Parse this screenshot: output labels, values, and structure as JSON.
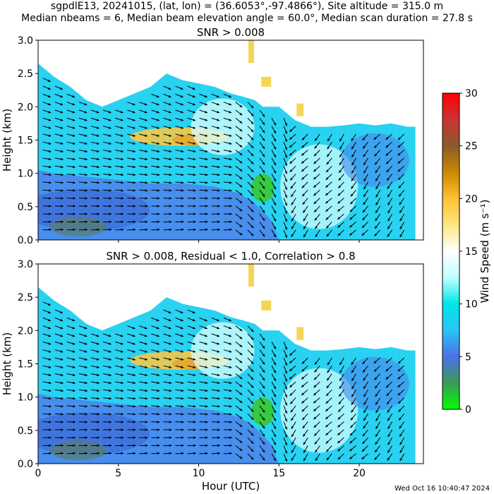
{
  "header": {
    "line1": "sgpdlE13, 20241015, (lat, lon) = (36.6053°,-97.4866°), Site altitude = 315.0 m",
    "line2": "Median nbeams = 6, Median beam elevation angle = 60.0°, Median scan duration = 27.8 s"
  },
  "footer": {
    "timestamp": "Wed Oct 16 10:40:47 2024"
  },
  "colorbar": {
    "label": "Wind Speed (m s⁻¹)",
    "min": 0,
    "max": 30,
    "ticks": [
      "0",
      "5",
      "10",
      "15",
      "20",
      "25",
      "30"
    ],
    "stops": [
      "#00ff00",
      "#3a9a58",
      "#4a72e8",
      "#29c5f6",
      "#00e6e6",
      "#bfffff",
      "#ffffff",
      "#ffe680",
      "#ffbf33",
      "#cc8800",
      "#8b5a2b",
      "#cc3333",
      "#ff0000"
    ]
  },
  "chart_data": [
    {
      "type": "heatmap",
      "title": "SNR > 0.008",
      "xlabel": "",
      "ylabel": "Height (km)",
      "xlim": [
        0,
        24
      ],
      "ylim": [
        0,
        3
      ],
      "xticks": [
        0,
        5,
        10,
        15,
        20
      ],
      "yticks": [
        "0.0",
        "0.5",
        "1.0",
        "1.5",
        "2.0",
        "2.5",
        "3.0"
      ],
      "top_profile_km": [
        [
          0,
          2.65
        ],
        [
          1,
          2.45
        ],
        [
          2,
          2.3
        ],
        [
          3,
          2.1
        ],
        [
          4,
          2.0
        ],
        [
          5,
          2.1
        ],
        [
          6,
          2.2
        ],
        [
          7,
          2.3
        ],
        [
          8,
          2.5
        ],
        [
          9,
          2.4
        ],
        [
          10,
          2.35
        ],
        [
          11,
          2.3
        ],
        [
          12,
          2.2
        ],
        [
          12.8,
          2.15
        ],
        [
          13.5,
          2.1
        ],
        [
          14,
          2.0
        ],
        [
          15,
          2.0
        ],
        [
          16,
          1.8
        ],
        [
          17,
          1.7
        ],
        [
          18,
          1.7
        ],
        [
          19,
          1.72
        ],
        [
          20,
          1.75
        ],
        [
          21,
          1.72
        ],
        [
          22,
          1.75
        ],
        [
          23,
          1.7
        ],
        [
          23.5,
          1.7
        ]
      ]
    },
    {
      "type": "heatmap",
      "title": "SNR > 0.008, Residual < 1.0, Correlation > 0.8",
      "xlabel": "Hour (UTC)",
      "ylabel": "Height (km)",
      "xlim": [
        0,
        24
      ],
      "ylim": [
        0,
        3
      ],
      "xticks": [
        0,
        5,
        10,
        15,
        20
      ],
      "yticks": [
        "0.0",
        "0.5",
        "1.0",
        "1.5",
        "2.0",
        "2.5",
        "3.0"
      ],
      "top_profile_km": [
        [
          0,
          2.65
        ],
        [
          1,
          2.45
        ],
        [
          2,
          2.3
        ],
        [
          3,
          2.1
        ],
        [
          4,
          2.0
        ],
        [
          5,
          2.1
        ],
        [
          6,
          2.2
        ],
        [
          7,
          2.3
        ],
        [
          8,
          2.5
        ],
        [
          9,
          2.4
        ],
        [
          10,
          2.35
        ],
        [
          11,
          2.3
        ],
        [
          12,
          2.2
        ],
        [
          12.8,
          2.15
        ],
        [
          13.5,
          2.1
        ],
        [
          14,
          2.0
        ],
        [
          15,
          2.0
        ],
        [
          16,
          1.8
        ],
        [
          17,
          1.7
        ],
        [
          18,
          1.7
        ],
        [
          19,
          1.72
        ],
        [
          20,
          1.75
        ],
        [
          21,
          1.72
        ],
        [
          22,
          1.75
        ],
        [
          23,
          1.7
        ],
        [
          23.5,
          1.7
        ]
      ]
    }
  ]
}
